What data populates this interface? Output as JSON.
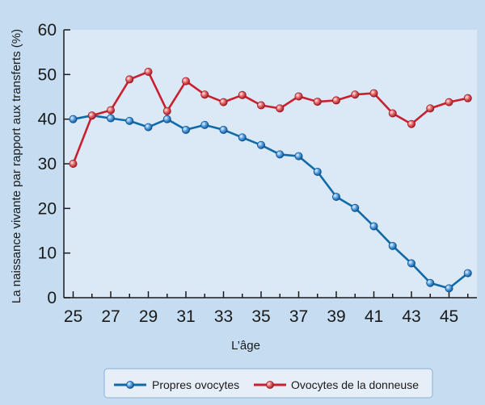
{
  "chart_data": {
    "type": "line",
    "title": "",
    "xlabel": "L’âge",
    "ylabel": "La naissance vivante par rapport aux transferts (%)",
    "xlim": [
      24.5,
      47
    ],
    "ylim": [
      0,
      60
    ],
    "x_ticks": [
      25,
      27,
      29,
      31,
      33,
      35,
      37,
      39,
      41,
      43,
      45
    ],
    "y_ticks": [
      0,
      10,
      20,
      30,
      40,
      50,
      60
    ],
    "grid": false,
    "legend_position": "bottom-center",
    "series": [
      {
        "name": "Propres ovocytes",
        "color": "#0f6aa8",
        "x": [
          25,
          26,
          27,
          28,
          29,
          30,
          31,
          32,
          33,
          34,
          35,
          36,
          37,
          38,
          39,
          40,
          41,
          42,
          43,
          44,
          45,
          46
        ],
        "values": [
          40,
          40.8,
          40.2,
          39.6,
          38.2,
          40.0,
          37.6,
          38.7,
          37.6,
          35.9,
          34.2,
          32.1,
          31.7,
          28.2,
          22.6,
          20.1,
          16.0,
          11.6,
          7.7,
          3.3,
          2.1,
          5.5
        ]
      },
      {
        "name": "Ovocytes de la donneuse",
        "color": "#c8202f",
        "x": [
          25,
          26,
          27,
          28,
          29,
          30,
          31,
          32,
          33,
          34,
          35,
          36,
          37,
          38,
          39,
          40,
          41,
          42,
          43,
          44,
          45,
          46
        ],
        "values": [
          30,
          40.8,
          42.0,
          48.9,
          50.6,
          41.8,
          48.5,
          45.5,
          43.8,
          45.4,
          43.1,
          42.4,
          45.1,
          43.9,
          44.2,
          45.5,
          45.8,
          41.3,
          38.9,
          42.4,
          43.8,
          44.7
        ]
      }
    ]
  }
}
